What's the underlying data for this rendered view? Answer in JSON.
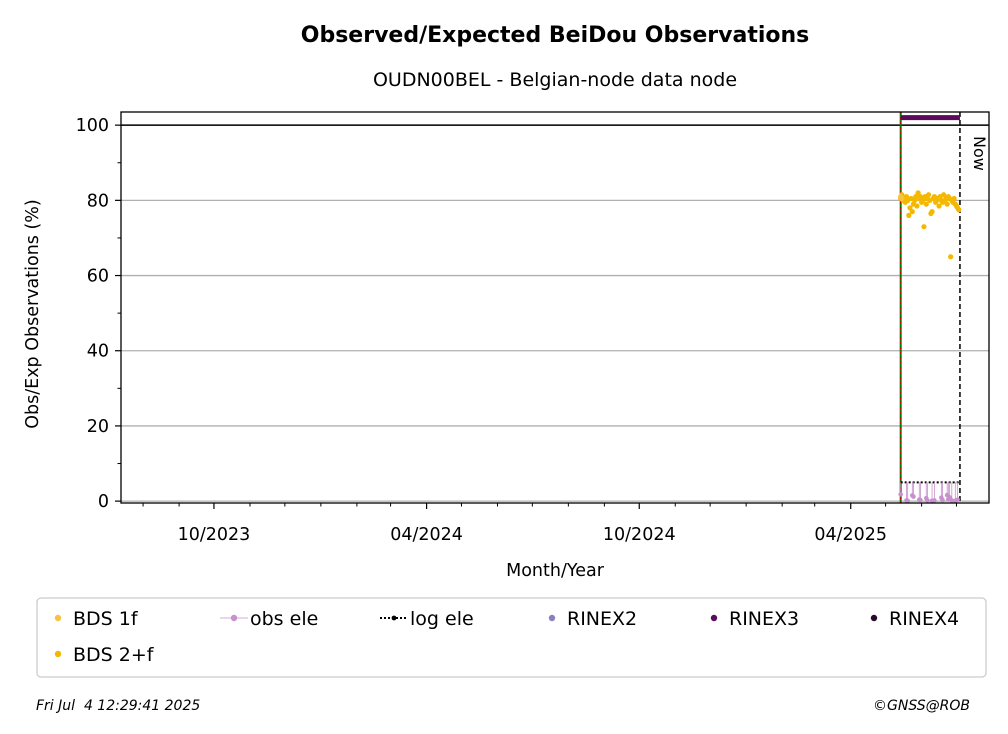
{
  "chart_data": {
    "type": "scatter",
    "title": "Observed/Expected BeiDou Observations",
    "subtitle": "OUDN00BEL - Belgian-node data node",
    "xlabel": "Month/Year",
    "ylabel": "Obs/Exp Observations (%)",
    "xlim": [
      "2023-07-13",
      "2025-07-29"
    ],
    "ylim": [
      -0.5,
      103.5
    ],
    "x_ticks": [
      {
        "date": "2023-10-01",
        "label": "10/2023"
      },
      {
        "date": "2024-04-01",
        "label": "04/2024"
      },
      {
        "date": "2024-10-01",
        "label": "10/2024"
      },
      {
        "date": "2025-04-01",
        "label": "04/2025"
      }
    ],
    "x_minor_ticks": [
      "2023-08-01",
      "2023-09-01",
      "2023-11-01",
      "2023-12-01",
      "2024-01-01",
      "2024-02-01",
      "2024-03-01",
      "2024-05-01",
      "2024-06-01",
      "2024-07-01",
      "2024-08-01",
      "2024-09-01",
      "2024-11-01",
      "2024-12-01",
      "2025-01-01",
      "2025-02-01",
      "2025-03-01",
      "2025-05-01",
      "2025-06-01",
      "2025-07-01"
    ],
    "y_ticks": [
      0,
      20,
      40,
      60,
      80,
      100
    ],
    "y_minor_ticks": [
      10,
      30,
      50,
      70,
      90
    ],
    "grid": "horizontal",
    "reference_line_y": 100,
    "start_marker_date": "2025-05-14",
    "now_date": "2025-07-04",
    "now_label": "Now",
    "series": [
      {
        "name": "BDS 1f",
        "color": "#f5c242",
        "x": [
          "2025-05-14",
          "2025-05-15"
        ],
        "y": [
          81.0,
          80.5
        ]
      },
      {
        "name": "BDS 2+f",
        "color": "#f5b800",
        "x": [
          "2025-05-14",
          "2025-05-15",
          "2025-05-16",
          "2025-05-17",
          "2025-05-18",
          "2025-05-19",
          "2025-05-20",
          "2025-05-21",
          "2025-05-22",
          "2025-05-23",
          "2025-05-24",
          "2025-05-25",
          "2025-05-26",
          "2025-05-27",
          "2025-05-28",
          "2025-05-29",
          "2025-05-30",
          "2025-05-31",
          "2025-06-01",
          "2025-06-02",
          "2025-06-03",
          "2025-06-04",
          "2025-06-05",
          "2025-06-06",
          "2025-06-07",
          "2025-06-08",
          "2025-06-09",
          "2025-06-10",
          "2025-06-11",
          "2025-06-12",
          "2025-06-13",
          "2025-06-14",
          "2025-06-15",
          "2025-06-16",
          "2025-06-17",
          "2025-06-18",
          "2025-06-19",
          "2025-06-20",
          "2025-06-21",
          "2025-06-22",
          "2025-06-23",
          "2025-06-24",
          "2025-06-25",
          "2025-06-26",
          "2025-06-27",
          "2025-06-28",
          "2025-06-29",
          "2025-06-30",
          "2025-07-01",
          "2025-07-02",
          "2025-07-03"
        ],
        "y": [
          80.5,
          81.5,
          80.0,
          80.5,
          79.5,
          81.0,
          80.0,
          76.0,
          78.0,
          80.5,
          77.0,
          79.0,
          80.0,
          81.0,
          78.5,
          82.0,
          80.5,
          81.0,
          79.5,
          80.0,
          73.0,
          81.0,
          79.0,
          80.5,
          81.5,
          80.0,
          76.5,
          77.0,
          80.5,
          81.0,
          79.5,
          80.0,
          80.5,
          78.5,
          81.0,
          80.0,
          79.5,
          81.5,
          80.0,
          80.5,
          79.0,
          81.0,
          80.5,
          65.0,
          80.0,
          79.5,
          80.5,
          79.0,
          78.5,
          78.0,
          77.5
        ]
      },
      {
        "name": "obs ele",
        "color": "#c890cc",
        "x": [
          "2025-05-14",
          "2025-05-19",
          "2025-05-20",
          "2025-05-24",
          "2025-05-25",
          "2025-05-30",
          "2025-05-31",
          "2025-06-05",
          "2025-06-06",
          "2025-06-10",
          "2025-06-12",
          "2025-06-18",
          "2025-06-19",
          "2025-06-23",
          "2025-06-24",
          "2025-06-25",
          "2025-06-27",
          "2025-06-30",
          "2025-07-02"
        ],
        "y": [
          1.8,
          0.2,
          0.1,
          1.5,
          1.2,
          0.4,
          0.3,
          0.8,
          0.2,
          0.1,
          0.2,
          0.9,
          0.3,
          1.6,
          0.5,
          1.0,
          0.2,
          0.1,
          0.4
        ]
      },
      {
        "name": "log ele",
        "color": "#000000",
        "x": [
          "2025-05-14",
          "2025-07-04"
        ],
        "y": [
          5.0,
          5.0
        ]
      },
      {
        "name": "RINEX2",
        "color": "#8a7fbf",
        "x": [],
        "y": []
      },
      {
        "name": "RINEX3",
        "color": "#5c0a5c",
        "x": [
          "2025-05-14",
          "2025-07-04"
        ],
        "y": [
          102,
          102
        ]
      },
      {
        "name": "RINEX4",
        "color": "#2a0a2a",
        "x": [],
        "y": []
      }
    ],
    "legend": {
      "placement": "bottom",
      "entries": [
        {
          "label": "BDS 1f",
          "marker": "dot",
          "color": "#f5c242"
        },
        {
          "label": "obs ele",
          "marker": "line-dot",
          "color": "#c890cc"
        },
        {
          "label": "log ele",
          "marker": "dotted-line",
          "color": "#000000"
        },
        {
          "label": "RINEX2",
          "marker": "dot",
          "color": "#8a7fbf"
        },
        {
          "label": "RINEX3",
          "marker": "dot",
          "color": "#5c0a5c"
        },
        {
          "label": "RINEX4",
          "marker": "dot",
          "color": "#2a0a2a"
        },
        {
          "label": "BDS 2+f",
          "marker": "dot",
          "color": "#f5b800"
        }
      ]
    }
  },
  "footer": {
    "timestamp": "Fri Jul  4 12:29:41 2025",
    "credit": "©GNSS@ROB"
  }
}
